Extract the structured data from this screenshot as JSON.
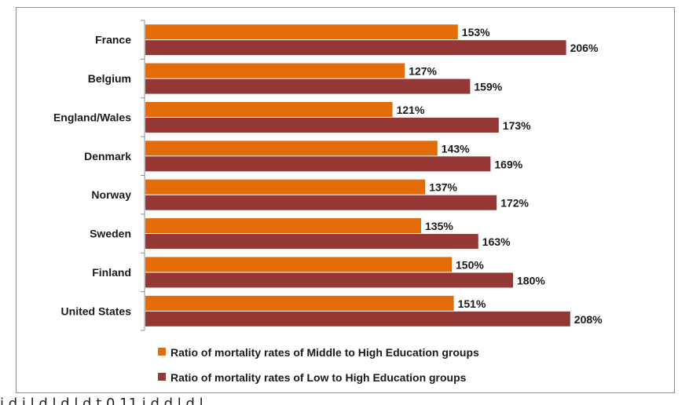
{
  "chart_data": {
    "type": "bar",
    "orientation": "horizontal",
    "categories": [
      "France",
      "Belgium",
      "England/Wales",
      "Denmark",
      "Norway",
      "Sweden",
      "Finland",
      "United States"
    ],
    "series": [
      {
        "name": "Ratio of mortality rates of Middle to High Education groups",
        "color": "#E36C09",
        "values": [
          153,
          127,
          121,
          143,
          137,
          135,
          150,
          151
        ],
        "labels": [
          "153%",
          "127%",
          "121%",
          "143%",
          "137%",
          "135%",
          "150%",
          "151%"
        ]
      },
      {
        "name": "Ratio of mortality rates of Low to High Education groups",
        "color": "#953735",
        "values": [
          206,
          159,
          173,
          169,
          172,
          163,
          180,
          208
        ],
        "labels": [
          "206%",
          "159%",
          "173%",
          "169%",
          "172%",
          "163%",
          "180%",
          "208%"
        ]
      }
    ],
    "xlim": [
      0,
      250
    ],
    "title": "",
    "xlabel": "",
    "ylabel": "",
    "grid": false,
    "legend_position": "bottom"
  },
  "caption_fragment": "i      d   i    l      d   l          d    l d t  0 11        i d d l  d    l"
}
